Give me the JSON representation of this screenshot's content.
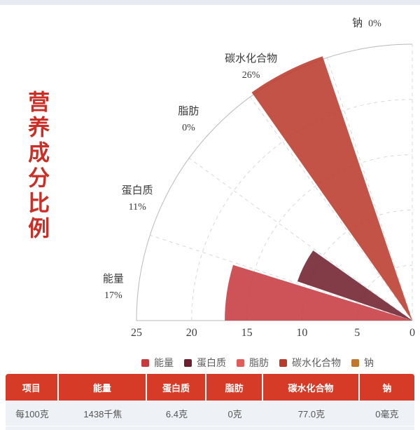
{
  "title": {
    "text": "营养成分比例"
  },
  "theme": {
    "title_color": "#cc2e25",
    "top_strip": "#e8eaf2",
    "axis_color": "#b9b9b9",
    "grid_color": "#d8d8d8",
    "label_color": "#3a3a3a",
    "legend_text": "#5f5f5f",
    "table_header_bg": "#d63b27",
    "table_header_text": "#ffffff",
    "table_row_bg": "#eef1f5",
    "table_row_text": "#555555"
  },
  "chart_data": {
    "type": "bar",
    "coordinate": "polar",
    "description": "Quarter-circle nutrient rose chart; each nutrient occupies an 18-degree sector, wedge radius equals its percentage",
    "categories": [
      "能量",
      "蛋白质",
      "脂肪",
      "碳水化合物",
      "钠"
    ],
    "values": [
      17,
      11,
      0,
      26,
      0
    ],
    "value_labels": [
      "17%",
      "11%",
      "0%",
      "26%",
      "0%"
    ],
    "colors": [
      "#c63a40",
      "#6e1f2d",
      "#e25c5c",
      "#b93a2a",
      "#c0762d"
    ],
    "axis": {
      "range": [
        0,
        25
      ],
      "ticks": [
        25,
        20,
        15,
        10,
        5,
        0
      ]
    },
    "grid": "dashed",
    "legend": {
      "position": "bottom",
      "items": [
        "能量",
        "蛋白质",
        "脂肪",
        "碳水化合物",
        "钠"
      ]
    }
  },
  "table": {
    "headers": [
      "项目",
      "能量",
      "蛋白质",
      "脂肪",
      "碳水化合物",
      "钠"
    ],
    "rows": [
      [
        "每100克",
        "1438千焦",
        "6.4克",
        "0克",
        "77.0克",
        "0毫克"
      ]
    ],
    "col_widths_pct": [
      13,
      21.6,
      14.6,
      13.9,
      23.6,
      13.4
    ]
  }
}
